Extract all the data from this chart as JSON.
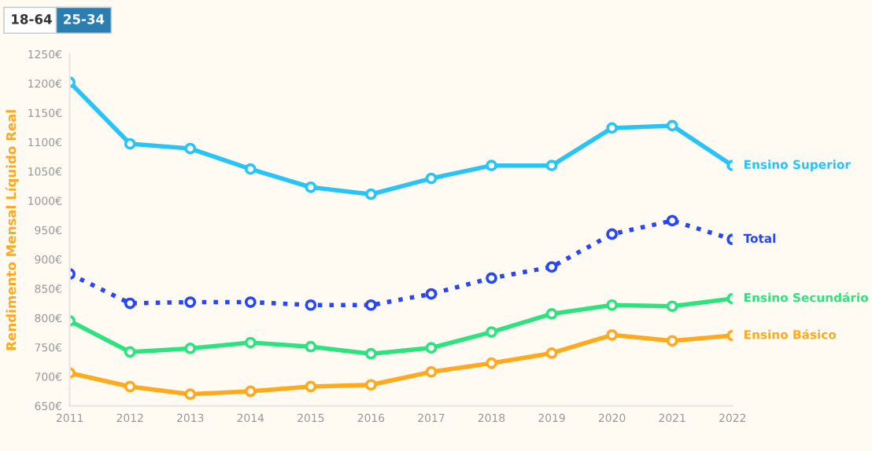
{
  "chart_data": {
    "type": "line",
    "ylabel": "Rendimento Mensal Líquido Real",
    "annotations": [
      "18-64",
      "25-34"
    ],
    "x": [
      2011,
      2012,
      2013,
      2014,
      2015,
      2016,
      2017,
      2018,
      2019,
      2020,
      2021,
      2022
    ],
    "series": [
      {
        "name": "Ensino Superior",
        "color": "#29c4f6",
        "values": [
          1202,
          1097,
          1089,
          1054,
          1023,
          1011,
          1038,
          1060,
          1060,
          1124,
          1128,
          1060
        ]
      },
      {
        "name": "Total",
        "color": "#2747f5",
        "line_style": "dotted",
        "values": [
          875,
          825,
          827,
          827,
          822,
          822,
          841,
          868,
          887,
          943,
          966,
          934
        ]
      },
      {
        "name": "Ensino Secundário",
        "color": "#2ee37f",
        "values": [
          795,
          742,
          748,
          758,
          751,
          739,
          749,
          776,
          807,
          822,
          820,
          833
        ]
      },
      {
        "name": "Ensino Básico",
        "color": "#ffa91f",
        "values": [
          706,
          683,
          670,
          675,
          683,
          686,
          708,
          723,
          740,
          771,
          761,
          770
        ]
      }
    ],
    "xlim": [
      2011,
      2022
    ],
    "xticks": [
      2011,
      2012,
      2013,
      2014,
      2015,
      2016,
      2017,
      2018,
      2019,
      2020,
      2021,
      2022
    ],
    "ylim": [
      650,
      1250
    ],
    "yticks": [
      {
        "value": 650,
        "label": "650€"
      },
      {
        "value": 700,
        "label": "700€"
      },
      {
        "value": 750,
        "label": "750€"
      },
      {
        "value": 800,
        "label": "800€"
      },
      {
        "value": 850,
        "label": "850€"
      },
      {
        "value": 900,
        "label": "900€"
      },
      {
        "value": 950,
        "label": "950€"
      },
      {
        "value": 1000,
        "label": "1000€"
      },
      {
        "value": 1050,
        "label": "1050€"
      },
      {
        "value": 1100,
        "label": "1100€"
      },
      {
        "value": 1150,
        "label": "1150€"
      },
      {
        "value": 1200,
        "label": "1200€"
      },
      {
        "value": 1250,
        "label": "1250€"
      }
    ],
    "marker": "circle",
    "line_style": "solid",
    "grid": false,
    "legend": false
  }
}
